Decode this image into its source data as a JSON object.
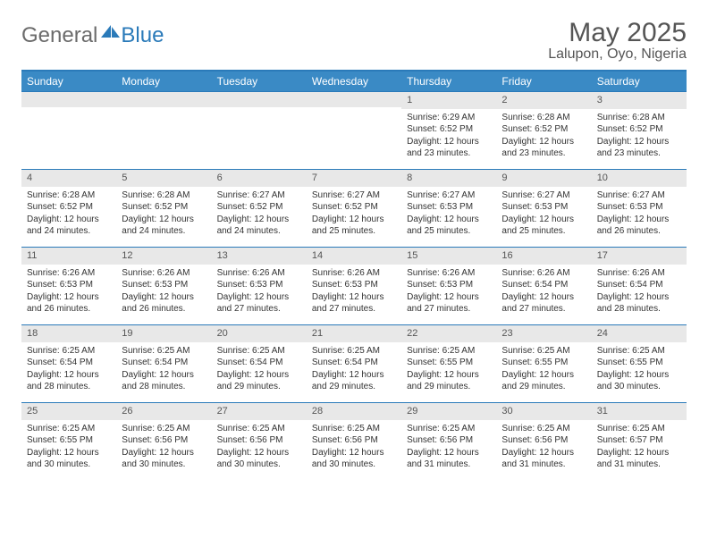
{
  "brand": {
    "name1": "General",
    "name2": "Blue",
    "color_gray": "#6b6b6b",
    "color_blue": "#2a7ab9"
  },
  "header": {
    "title": "May 2025",
    "location": "Lalupon, Oyo, Nigeria"
  },
  "colors": {
    "header_bar": "#3a8ac5",
    "rule": "#2a7ab9",
    "daynum_bg": "#e8e8e8",
    "text": "#333333"
  },
  "days_of_week": [
    "Sunday",
    "Monday",
    "Tuesday",
    "Wednesday",
    "Thursday",
    "Friday",
    "Saturday"
  ],
  "first_day_index": 4,
  "days": [
    {
      "n": 1,
      "sunrise": "6:29 AM",
      "sunset": "6:52 PM",
      "daylight": "12 hours and 23 minutes."
    },
    {
      "n": 2,
      "sunrise": "6:28 AM",
      "sunset": "6:52 PM",
      "daylight": "12 hours and 23 minutes."
    },
    {
      "n": 3,
      "sunrise": "6:28 AM",
      "sunset": "6:52 PM",
      "daylight": "12 hours and 23 minutes."
    },
    {
      "n": 4,
      "sunrise": "6:28 AM",
      "sunset": "6:52 PM",
      "daylight": "12 hours and 24 minutes."
    },
    {
      "n": 5,
      "sunrise": "6:28 AM",
      "sunset": "6:52 PM",
      "daylight": "12 hours and 24 minutes."
    },
    {
      "n": 6,
      "sunrise": "6:27 AM",
      "sunset": "6:52 PM",
      "daylight": "12 hours and 24 minutes."
    },
    {
      "n": 7,
      "sunrise": "6:27 AM",
      "sunset": "6:52 PM",
      "daylight": "12 hours and 25 minutes."
    },
    {
      "n": 8,
      "sunrise": "6:27 AM",
      "sunset": "6:53 PM",
      "daylight": "12 hours and 25 minutes."
    },
    {
      "n": 9,
      "sunrise": "6:27 AM",
      "sunset": "6:53 PM",
      "daylight": "12 hours and 25 minutes."
    },
    {
      "n": 10,
      "sunrise": "6:27 AM",
      "sunset": "6:53 PM",
      "daylight": "12 hours and 26 minutes."
    },
    {
      "n": 11,
      "sunrise": "6:26 AM",
      "sunset": "6:53 PM",
      "daylight": "12 hours and 26 minutes."
    },
    {
      "n": 12,
      "sunrise": "6:26 AM",
      "sunset": "6:53 PM",
      "daylight": "12 hours and 26 minutes."
    },
    {
      "n": 13,
      "sunrise": "6:26 AM",
      "sunset": "6:53 PM",
      "daylight": "12 hours and 27 minutes."
    },
    {
      "n": 14,
      "sunrise": "6:26 AM",
      "sunset": "6:53 PM",
      "daylight": "12 hours and 27 minutes."
    },
    {
      "n": 15,
      "sunrise": "6:26 AM",
      "sunset": "6:53 PM",
      "daylight": "12 hours and 27 minutes."
    },
    {
      "n": 16,
      "sunrise": "6:26 AM",
      "sunset": "6:54 PM",
      "daylight": "12 hours and 27 minutes."
    },
    {
      "n": 17,
      "sunrise": "6:26 AM",
      "sunset": "6:54 PM",
      "daylight": "12 hours and 28 minutes."
    },
    {
      "n": 18,
      "sunrise": "6:25 AM",
      "sunset": "6:54 PM",
      "daylight": "12 hours and 28 minutes."
    },
    {
      "n": 19,
      "sunrise": "6:25 AM",
      "sunset": "6:54 PM",
      "daylight": "12 hours and 28 minutes."
    },
    {
      "n": 20,
      "sunrise": "6:25 AM",
      "sunset": "6:54 PM",
      "daylight": "12 hours and 29 minutes."
    },
    {
      "n": 21,
      "sunrise": "6:25 AM",
      "sunset": "6:54 PM",
      "daylight": "12 hours and 29 minutes."
    },
    {
      "n": 22,
      "sunrise": "6:25 AM",
      "sunset": "6:55 PM",
      "daylight": "12 hours and 29 minutes."
    },
    {
      "n": 23,
      "sunrise": "6:25 AM",
      "sunset": "6:55 PM",
      "daylight": "12 hours and 29 minutes."
    },
    {
      "n": 24,
      "sunrise": "6:25 AM",
      "sunset": "6:55 PM",
      "daylight": "12 hours and 30 minutes."
    },
    {
      "n": 25,
      "sunrise": "6:25 AM",
      "sunset": "6:55 PM",
      "daylight": "12 hours and 30 minutes."
    },
    {
      "n": 26,
      "sunrise": "6:25 AM",
      "sunset": "6:56 PM",
      "daylight": "12 hours and 30 minutes."
    },
    {
      "n": 27,
      "sunrise": "6:25 AM",
      "sunset": "6:56 PM",
      "daylight": "12 hours and 30 minutes."
    },
    {
      "n": 28,
      "sunrise": "6:25 AM",
      "sunset": "6:56 PM",
      "daylight": "12 hours and 30 minutes."
    },
    {
      "n": 29,
      "sunrise": "6:25 AM",
      "sunset": "6:56 PM",
      "daylight": "12 hours and 31 minutes."
    },
    {
      "n": 30,
      "sunrise": "6:25 AM",
      "sunset": "6:56 PM",
      "daylight": "12 hours and 31 minutes."
    },
    {
      "n": 31,
      "sunrise": "6:25 AM",
      "sunset": "6:57 PM",
      "daylight": "12 hours and 31 minutes."
    }
  ],
  "labels": {
    "sunrise": "Sunrise:",
    "sunset": "Sunset:",
    "daylight": "Daylight:"
  }
}
